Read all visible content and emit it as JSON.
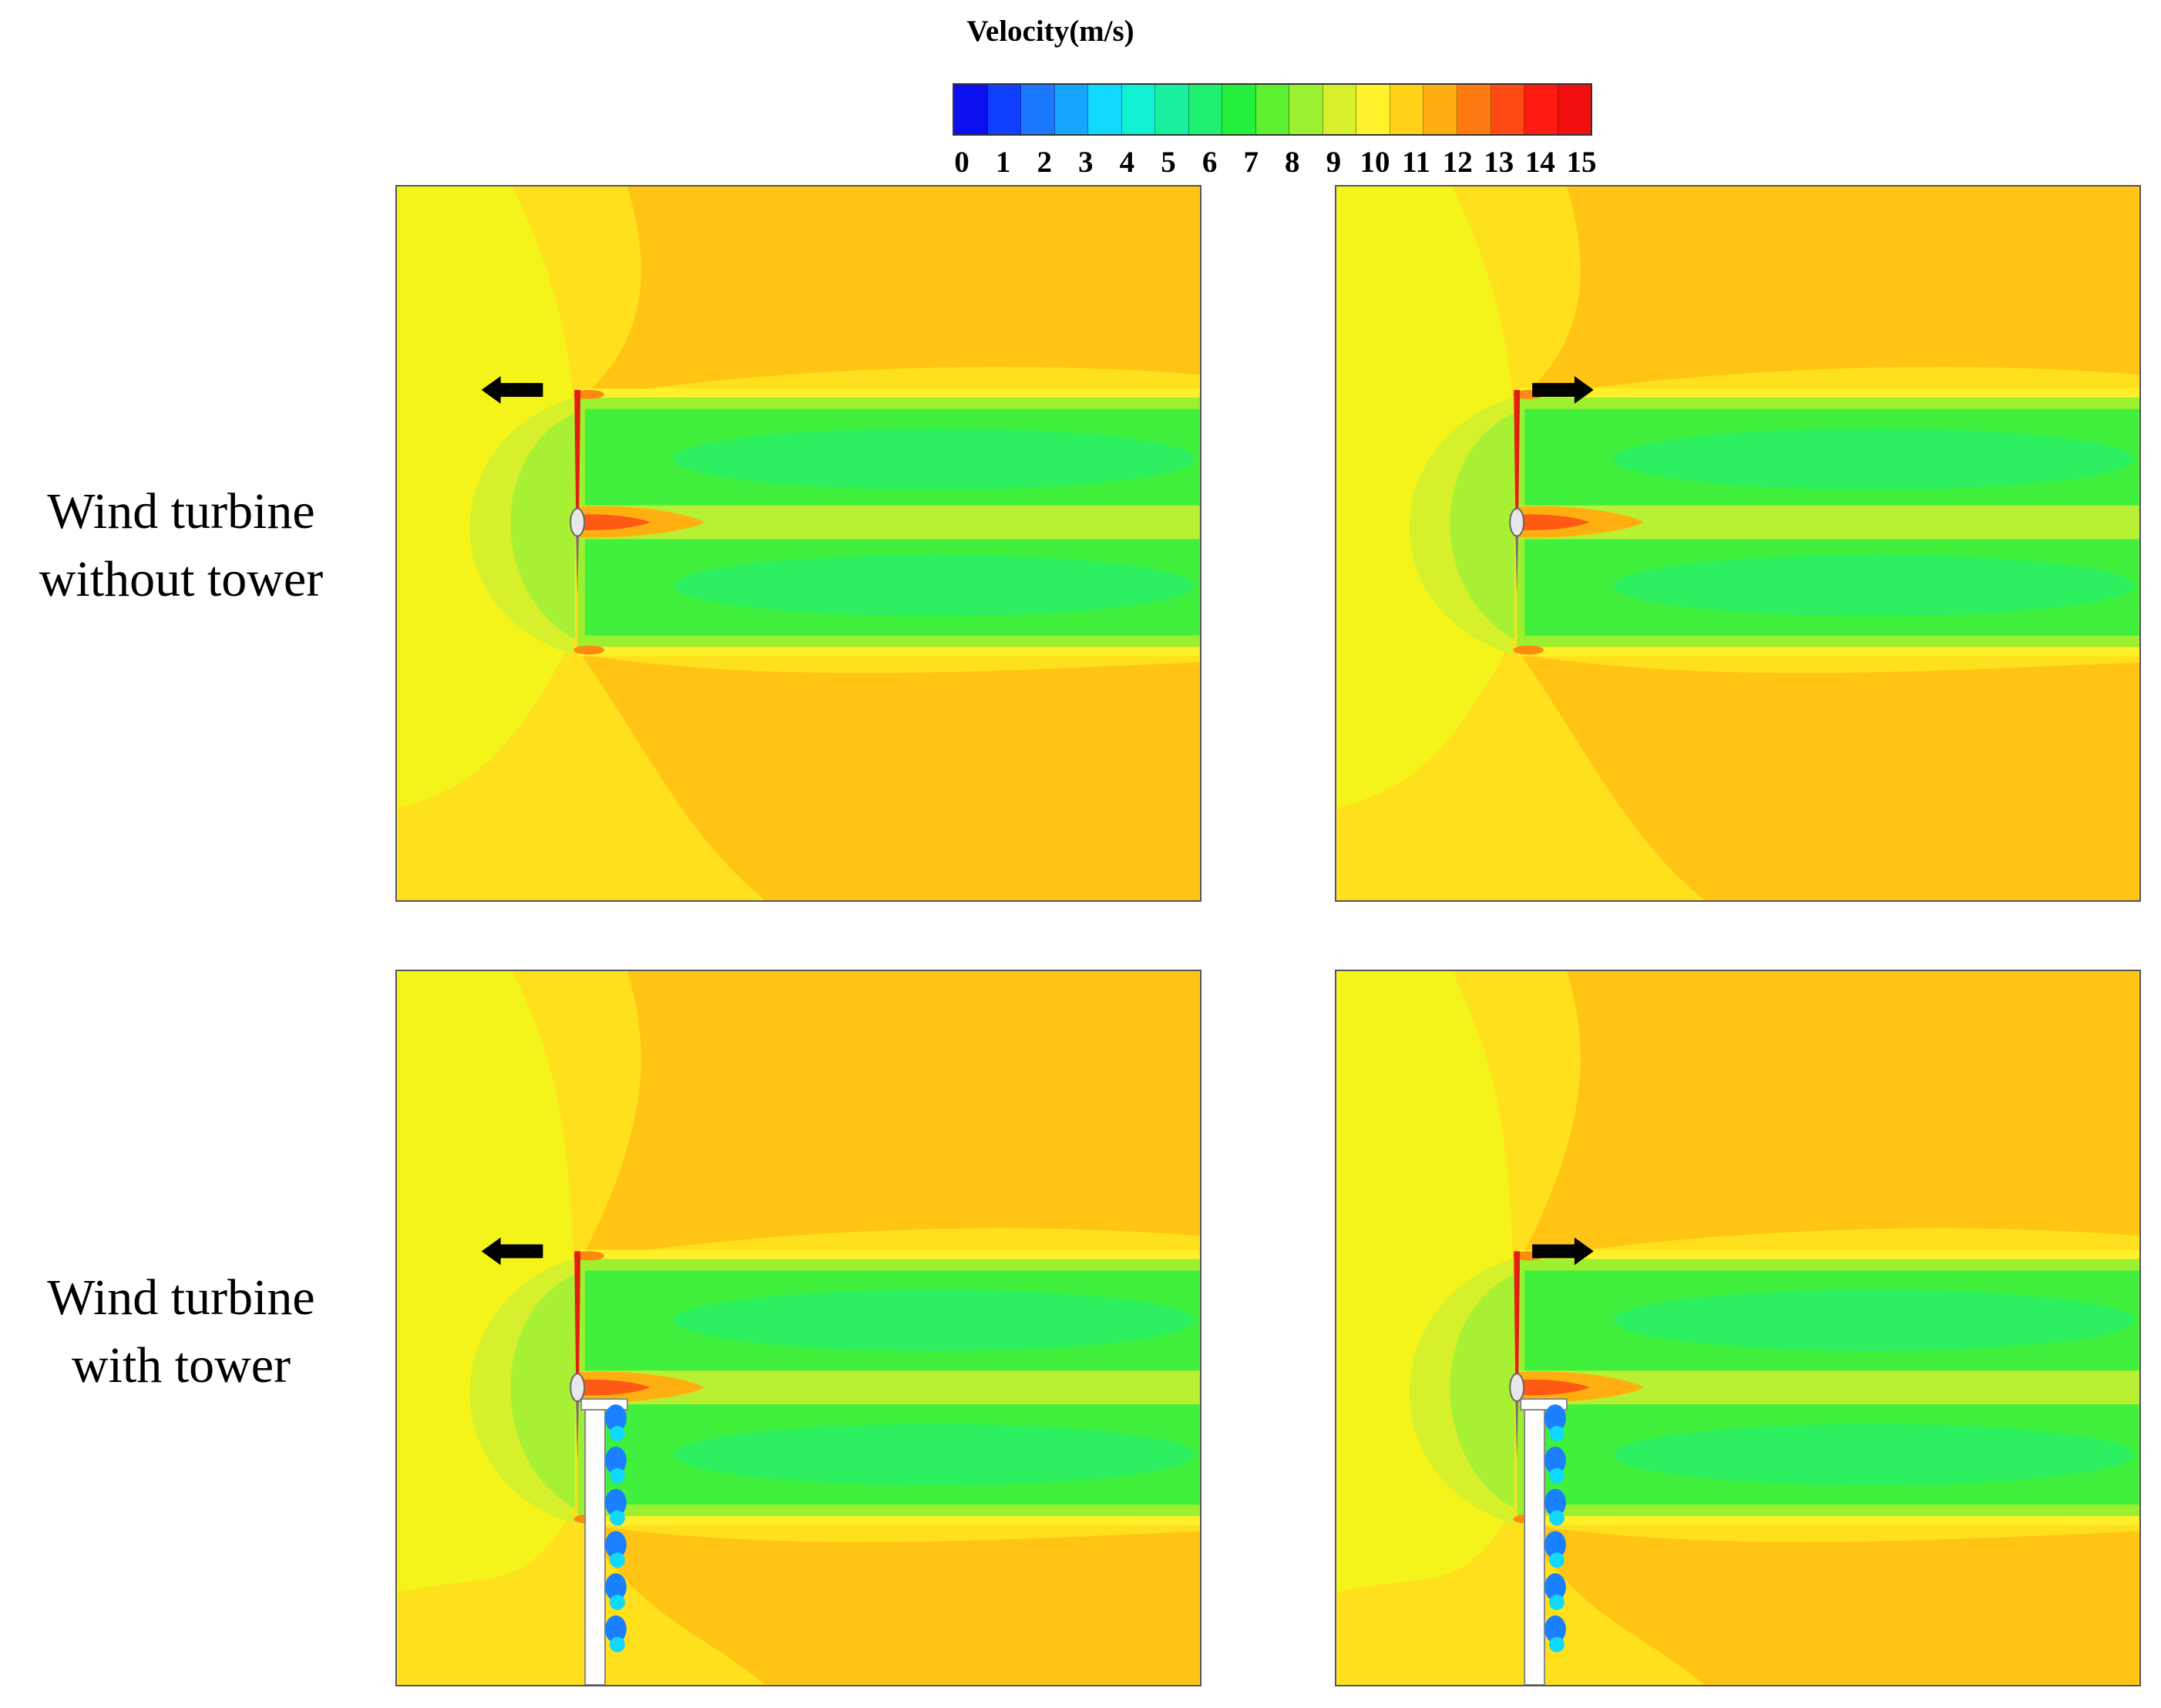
{
  "legend": {
    "title": "Velocity(m/s)",
    "ticks": [
      "0",
      "1",
      "2",
      "3",
      "4",
      "5",
      "6",
      "7",
      "8",
      "9",
      "10",
      "11",
      "12",
      "13",
      "14",
      "15"
    ],
    "colors": [
      "#0a10f0",
      "#1040ff",
      "#1a78ff",
      "#16a6ff",
      "#10d8ff",
      "#10f0d2",
      "#18f0a0",
      "#20f070",
      "#24f03c",
      "#5cf030",
      "#9cf032",
      "#d8f02c",
      "#fff22a",
      "#ffd218",
      "#ffae10",
      "#ff7a10",
      "#ff4a14",
      "#ff1a12",
      "#f01010"
    ]
  },
  "rows": [
    {
      "label_line1": "Wind turbine",
      "label_line2": "without tower"
    },
    {
      "label_line1": "Wind turbine",
      "label_line2": "with tower"
    }
  ],
  "panels": [
    {
      "tower": false,
      "arrow": "left"
    },
    {
      "tower": false,
      "arrow": "right"
    },
    {
      "tower": true,
      "arrow": "left"
    },
    {
      "tower": true,
      "arrow": "right"
    }
  ]
}
